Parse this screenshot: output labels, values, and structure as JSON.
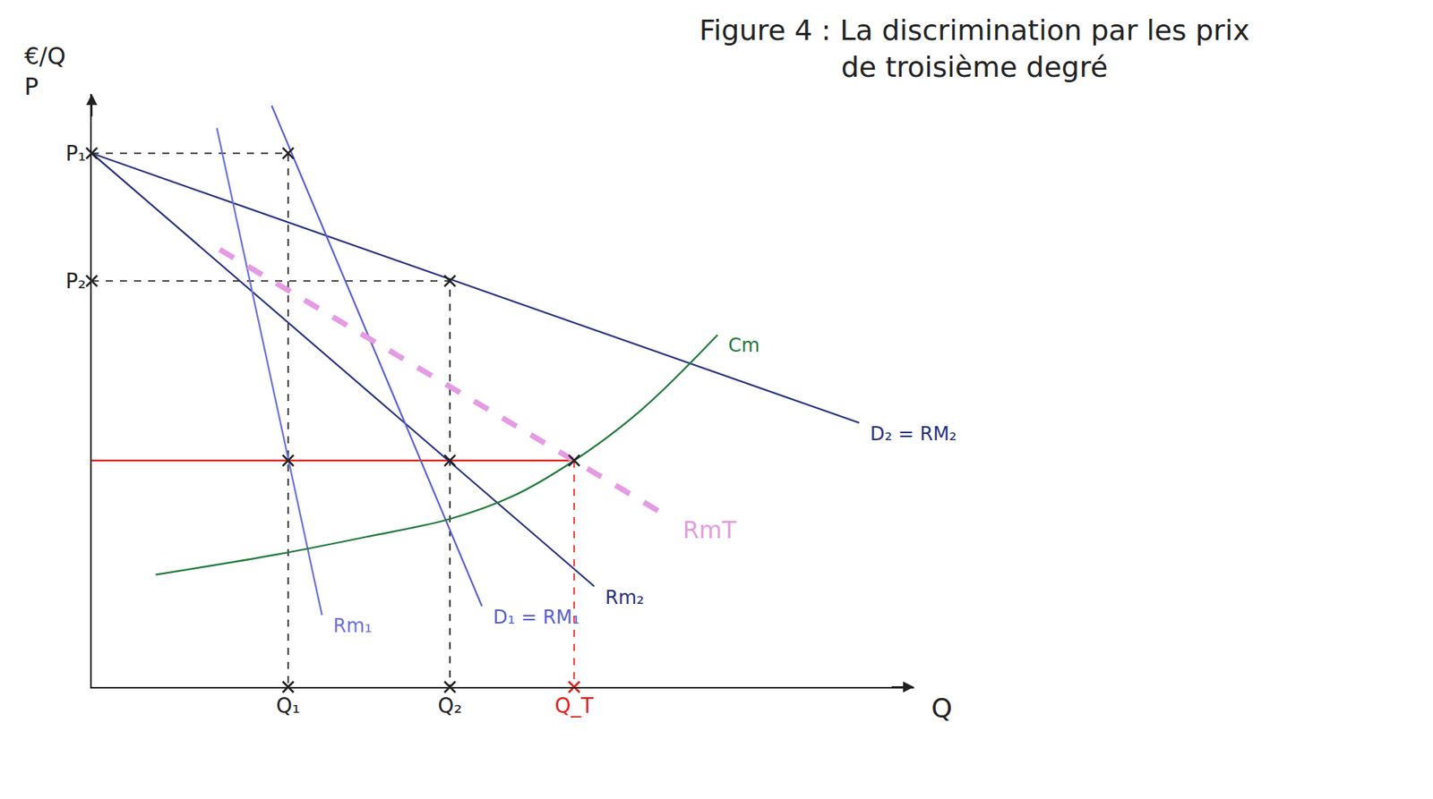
{
  "chart_data": {
    "type": "line",
    "title": [
      "Figure 4 : La discrimination par les prix",
      "de troisième degré"
    ],
    "axis_labels": {
      "x": "Q",
      "y": [
        "€/Q",
        "P"
      ]
    },
    "xlim": [
      0,
      90
    ],
    "ylim": [
      0,
      66
    ],
    "xticks": [
      {
        "value": 21.5,
        "label": "Q₁"
      },
      {
        "value": 39.2,
        "label": "Q₂"
      },
      {
        "value": 52.8,
        "label": "Q_T"
      }
    ],
    "yticks": [
      {
        "value": 59.4,
        "label": "P₁"
      },
      {
        "value": 45.2,
        "label": "P₂"
      }
    ],
    "grid": false,
    "series": [
      {
        "name": "D₂ = RM₂",
        "color": "#27307f",
        "line_style": "solid",
        "x": [
          0,
          84
        ],
        "y": [
          59.4,
          29.4
        ]
      },
      {
        "name": "Rm₂",
        "color": "#27307f",
        "line_style": "solid",
        "x": [
          0,
          55
        ],
        "y": [
          59.4,
          11.2
        ]
      },
      {
        "name": "D₁ = RM₁",
        "color": "#5a5fd0",
        "line_style": "solid",
        "x": [
          19.7,
          42.7
        ],
        "y": [
          64.7,
          9.0
        ]
      },
      {
        "name": "Rm₁",
        "color": "#6d72d8",
        "line_style": "solid",
        "x": [
          13.7,
          25.2
        ],
        "y": [
          62.2,
          8.0
        ]
      },
      {
        "name": "RmT",
        "color": "#e59be3",
        "line_style": "dash",
        "x": [
          14,
          63.5
        ],
        "y": [
          48.7,
          18.7
        ]
      },
      {
        "name": "Cm",
        "color": "#1f7a3a",
        "line_style": "spline",
        "x": [
          7,
          20,
          30,
          39.2,
          46,
          52.8,
          60,
          68.5
        ],
        "y": [
          12.5,
          14.7,
          16.7,
          18.7,
          21.2,
          25.2,
          30.7,
          39.2
        ]
      }
    ],
    "guides": [
      {
        "color": "#222222",
        "line_style": "dash",
        "x": [
          0,
          21.5,
          21.5
        ],
        "y": [
          59.4,
          59.4,
          0
        ]
      },
      {
        "color": "#222222",
        "line_style": "dash",
        "x": [
          0,
          39.2,
          39.2
        ],
        "y": [
          45.2,
          45.2,
          0
        ]
      },
      {
        "color": "#e0201b",
        "line_style": "solid",
        "x": [
          0,
          52.8
        ],
        "y": [
          25.2,
          25.2
        ]
      },
      {
        "color": "#e0201b",
        "line_style": "dash",
        "x": [
          52.8,
          52.8
        ],
        "y": [
          25.2,
          0
        ]
      }
    ],
    "points": [
      {
        "x": 0,
        "y": 59.4,
        "color": "#222222"
      },
      {
        "x": 21.5,
        "y": 59.4,
        "color": "#222222"
      },
      {
        "x": 0,
        "y": 45.2,
        "color": "#222222"
      },
      {
        "x": 39.2,
        "y": 45.2,
        "color": "#222222"
      },
      {
        "x": 21.5,
        "y": 25.2,
        "color": "#222222"
      },
      {
        "x": 39.2,
        "y": 25.2,
        "color": "#222222"
      },
      {
        "x": 52.8,
        "y": 25.2,
        "color": "#222222"
      },
      {
        "x": 21.5,
        "y": 0,
        "color": "#222222"
      },
      {
        "x": 39.2,
        "y": 0,
        "color": "#222222"
      },
      {
        "x": 52.8,
        "y": 0,
        "color": "#e0201b"
      }
    ]
  }
}
